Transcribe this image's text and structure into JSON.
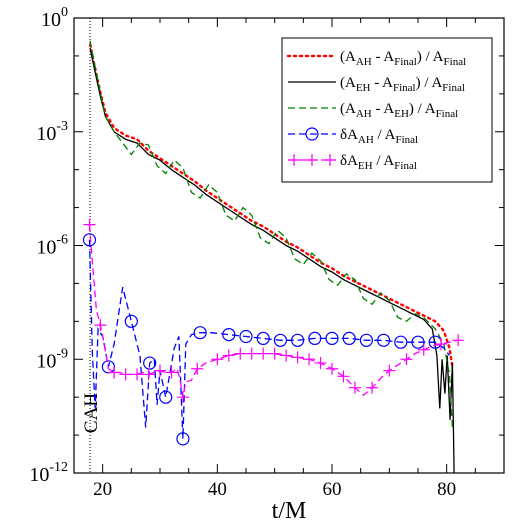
{
  "chart_data": {
    "type": "line",
    "xlabel": "t/M",
    "ylabel": "",
    "xlim": [
      15,
      90
    ],
    "ylim_log10": [
      -12,
      0
    ],
    "y_scale": "log",
    "x_ticks": [
      {
        "value": 20,
        "label": "20"
      },
      {
        "value": 40,
        "label": "40"
      },
      {
        "value": 60,
        "label": "60"
      },
      {
        "value": 80,
        "label": "80"
      }
    ],
    "y_ticks": [
      {
        "exp": 0,
        "base": "10",
        "sup": "0"
      },
      {
        "exp": -3,
        "base": "10",
        "sup": "-3"
      },
      {
        "exp": -6,
        "base": "10",
        "sup": "-6"
      },
      {
        "exp": -9,
        "base": "10",
        "sup": "-9"
      },
      {
        "exp": -12,
        "base": "10",
        "sup": "-12"
      }
    ],
    "annotation": {
      "text": "CAH",
      "x": 17.8
    },
    "legend_position": "top-right",
    "series": [
      {
        "legend": [
          {
            "t": "(A",
            "b": false
          },
          {
            "t": "AH",
            "b": true
          },
          {
            "t": " - A",
            "b": false
          },
          {
            "t": "Final",
            "b": true
          },
          {
            "t": ") / A",
            "b": false
          },
          {
            "t": "Final",
            "b": true
          }
        ],
        "color": "#ff0000",
        "style": "dotted",
        "marker": "none",
        "points": [
          [
            17.8,
            -0.7
          ],
          [
            18.5,
            -1.2
          ],
          [
            19.5,
            -1.9
          ],
          [
            20.5,
            -2.5
          ],
          [
            22,
            -2.9
          ],
          [
            24,
            -3.1
          ],
          [
            26,
            -3.2
          ],
          [
            28,
            -3.5
          ],
          [
            30,
            -3.7
          ],
          [
            32,
            -3.9
          ],
          [
            34,
            -4.1
          ],
          [
            36,
            -4.3
          ],
          [
            38,
            -4.55
          ],
          [
            40,
            -4.75
          ],
          [
            42,
            -4.95
          ],
          [
            44,
            -5.15
          ],
          [
            46,
            -5.35
          ],
          [
            48,
            -5.5
          ],
          [
            50,
            -5.7
          ],
          [
            52,
            -5.9
          ],
          [
            54,
            -6.05
          ],
          [
            56,
            -6.25
          ],
          [
            58,
            -6.45
          ],
          [
            60,
            -6.6
          ],
          [
            62,
            -6.8
          ],
          [
            64,
            -6.95
          ],
          [
            66,
            -7.1
          ],
          [
            68,
            -7.25
          ],
          [
            70,
            -7.4
          ],
          [
            72,
            -7.55
          ],
          [
            74,
            -7.7
          ],
          [
            76,
            -7.85
          ],
          [
            78,
            -8.0
          ],
          [
            79.5,
            -8.25
          ],
          [
            80.5,
            -8.7
          ],
          [
            81,
            -9.2
          ]
        ]
      },
      {
        "legend": [
          {
            "t": "(A",
            "b": false
          },
          {
            "t": "EH",
            "b": true
          },
          {
            "t": " - A",
            "b": false
          },
          {
            "t": "Final",
            "b": true
          },
          {
            "t": ") / A",
            "b": false
          },
          {
            "t": "Final",
            "b": true
          }
        ],
        "color": "#000000",
        "style": "solid",
        "marker": "none",
        "points": [
          [
            17.8,
            -0.8
          ],
          [
            18.5,
            -1.3
          ],
          [
            19.5,
            -2.0
          ],
          [
            20.5,
            -2.6
          ],
          [
            22,
            -3.0
          ],
          [
            24,
            -3.2
          ],
          [
            26,
            -3.3
          ],
          [
            28,
            -3.6
          ],
          [
            30,
            -3.75
          ],
          [
            32,
            -4.0
          ],
          [
            34,
            -4.2
          ],
          [
            36,
            -4.4
          ],
          [
            38,
            -4.65
          ],
          [
            40,
            -4.85
          ],
          [
            42,
            -5.05
          ],
          [
            44,
            -5.25
          ],
          [
            46,
            -5.45
          ],
          [
            48,
            -5.6
          ],
          [
            50,
            -5.8
          ],
          [
            52,
            -6.0
          ],
          [
            54,
            -6.15
          ],
          [
            56,
            -6.35
          ],
          [
            58,
            -6.55
          ],
          [
            60,
            -6.7
          ],
          [
            62,
            -6.9
          ],
          [
            64,
            -7.05
          ],
          [
            66,
            -7.2
          ],
          [
            68,
            -7.35
          ],
          [
            70,
            -7.5
          ],
          [
            72,
            -7.65
          ],
          [
            74,
            -7.8
          ],
          [
            76,
            -7.95
          ],
          [
            77.5,
            -8.2
          ],
          [
            78.3,
            -8.9
          ],
          [
            78.8,
            -10.3
          ],
          [
            79.2,
            -9.0
          ],
          [
            79.7,
            -9.9
          ],
          [
            80.1,
            -8.9
          ],
          [
            80.6,
            -10.6
          ],
          [
            81,
            -9.1
          ],
          [
            81.3,
            -12
          ]
        ]
      },
      {
        "legend": [
          {
            "t": "(A",
            "b": false
          },
          {
            "t": "AH",
            "b": true
          },
          {
            "t": " - A",
            "b": false
          },
          {
            "t": "EH",
            "b": true
          },
          {
            "t": ")  / A",
            "b": false
          },
          {
            "t": "Final",
            "b": true
          }
        ],
        "color": "#008000",
        "style": "dashed",
        "marker": "none",
        "points": [
          [
            17.8,
            -0.6
          ],
          [
            18.5,
            -1.15
          ],
          [
            19.5,
            -1.9
          ],
          [
            20.5,
            -2.6
          ],
          [
            22,
            -3.0
          ],
          [
            23.5,
            -3.3
          ],
          [
            25,
            -3.6
          ],
          [
            26.5,
            -3.3
          ],
          [
            28,
            -3.35
          ],
          [
            29.5,
            -3.9
          ],
          [
            31,
            -4.1
          ],
          [
            32.5,
            -3.75
          ],
          [
            34,
            -3.95
          ],
          [
            35.5,
            -4.6
          ],
          [
            37,
            -4.75
          ],
          [
            38.5,
            -4.4
          ],
          [
            40,
            -4.6
          ],
          [
            41.5,
            -5.2
          ],
          [
            43,
            -5.35
          ],
          [
            44.5,
            -5.0
          ],
          [
            46,
            -5.2
          ],
          [
            47.5,
            -5.8
          ],
          [
            49,
            -5.95
          ],
          [
            50.5,
            -5.6
          ],
          [
            52,
            -5.8
          ],
          [
            53.5,
            -6.35
          ],
          [
            55,
            -6.5
          ],
          [
            56.5,
            -6.2
          ],
          [
            58,
            -6.4
          ],
          [
            59.5,
            -6.9
          ],
          [
            61,
            -7.05
          ],
          [
            62.5,
            -6.75
          ],
          [
            64,
            -6.9
          ],
          [
            65.5,
            -7.4
          ],
          [
            67,
            -7.55
          ],
          [
            68.5,
            -7.25
          ],
          [
            70,
            -7.45
          ],
          [
            71.5,
            -7.9
          ],
          [
            73,
            -8.0
          ],
          [
            74.5,
            -7.8
          ],
          [
            76,
            -7.9
          ],
          [
            78,
            -8.2
          ],
          [
            79.5,
            -8.6
          ],
          [
            80.5,
            -9.4
          ],
          [
            81,
            -10.8
          ]
        ]
      },
      {
        "legend": [
          {
            "t": "δA",
            "b": false
          },
          {
            "t": "AH",
            "b": true
          },
          {
            "t": " / A",
            "b": false
          },
          {
            "t": "Final",
            "b": true
          }
        ],
        "color": "#0000ff",
        "style": "dashed",
        "marker": "circle",
        "points": [
          [
            17.7,
            -5.85
          ],
          [
            18.2,
            -8.8
          ],
          [
            18.7,
            -10.3
          ],
          [
            19.2,
            -8.2
          ],
          [
            20,
            -8.4
          ],
          [
            21,
            -9.2
          ],
          [
            22,
            -8.6
          ],
          [
            23.5,
            -7.1
          ],
          [
            25,
            -8.0
          ],
          [
            26.5,
            -8.9
          ],
          [
            27.5,
            -10.8
          ],
          [
            28.2,
            -9.1
          ],
          [
            29,
            -9.0
          ],
          [
            29.5,
            -10.2
          ],
          [
            30,
            -9.3
          ],
          [
            31,
            -10.0
          ],
          [
            32.5,
            -8.7
          ],
          [
            33.3,
            -8.4
          ],
          [
            34,
            -11.1
          ],
          [
            34.5,
            -8.6
          ],
          [
            35.5,
            -8.35
          ],
          [
            37,
            -8.3
          ],
          [
            39,
            -8.3
          ],
          [
            42,
            -8.35
          ],
          [
            45,
            -8.4
          ],
          [
            48,
            -8.45
          ],
          [
            51,
            -8.5
          ],
          [
            54,
            -8.5
          ],
          [
            57,
            -8.45
          ],
          [
            60,
            -8.45
          ],
          [
            63,
            -8.45
          ],
          [
            66,
            -8.5
          ],
          [
            69,
            -8.5
          ],
          [
            72,
            -8.55
          ],
          [
            75,
            -8.55
          ],
          [
            78,
            -8.55
          ],
          [
            79.5,
            -8.7
          ],
          [
            80.5,
            -8.9
          ]
        ]
      },
      {
        "legend": [
          {
            "t": "δA",
            "b": false
          },
          {
            "t": "EH",
            "b": true
          },
          {
            "t": " / A",
            "b": false
          },
          {
            "t": "Final",
            "b": true
          }
        ],
        "color": "#ff00ff",
        "style": "dashed",
        "marker": "plus",
        "points": [
          [
            17.7,
            -5.45
          ],
          [
            18.3,
            -6.6
          ],
          [
            18.9,
            -7.7
          ],
          [
            19.6,
            -8.1
          ],
          [
            20.3,
            -8.6
          ],
          [
            21,
            -9.25
          ],
          [
            22,
            -9.35
          ],
          [
            23,
            -9.35
          ],
          [
            24,
            -9.4
          ],
          [
            25,
            -9.4
          ],
          [
            26,
            -9.4
          ],
          [
            27,
            -9.35
          ],
          [
            28,
            -9.4
          ],
          [
            29,
            -9.35
          ],
          [
            30,
            -9.3
          ],
          [
            31,
            -9.35
          ],
          [
            32,
            -9.35
          ],
          [
            33,
            -9.25
          ],
          [
            33.5,
            -9.55
          ],
          [
            34,
            -10.0
          ],
          [
            34.5,
            -9.6
          ],
          [
            35.5,
            -9.55
          ],
          [
            36.5,
            -9.25
          ],
          [
            38,
            -9.1
          ],
          [
            40,
            -9.0
          ],
          [
            42,
            -8.9
          ],
          [
            44,
            -8.85
          ],
          [
            46,
            -8.85
          ],
          [
            48,
            -8.85
          ],
          [
            50,
            -8.85
          ],
          [
            52,
            -8.9
          ],
          [
            54,
            -8.95
          ],
          [
            56,
            -9.0
          ],
          [
            58,
            -9.1
          ],
          [
            60,
            -9.25
          ],
          [
            62,
            -9.45
          ],
          [
            64,
            -9.75
          ],
          [
            65.5,
            -9.95
          ],
          [
            67,
            -9.75
          ],
          [
            68.5,
            -9.5
          ],
          [
            70,
            -9.3
          ],
          [
            71.5,
            -9.15
          ],
          [
            73,
            -9.0
          ],
          [
            74.5,
            -8.85
          ],
          [
            76,
            -8.75
          ],
          [
            77.5,
            -8.65
          ],
          [
            79,
            -8.6
          ],
          [
            80.5,
            -8.55
          ],
          [
            82,
            -8.5
          ]
        ]
      }
    ]
  }
}
